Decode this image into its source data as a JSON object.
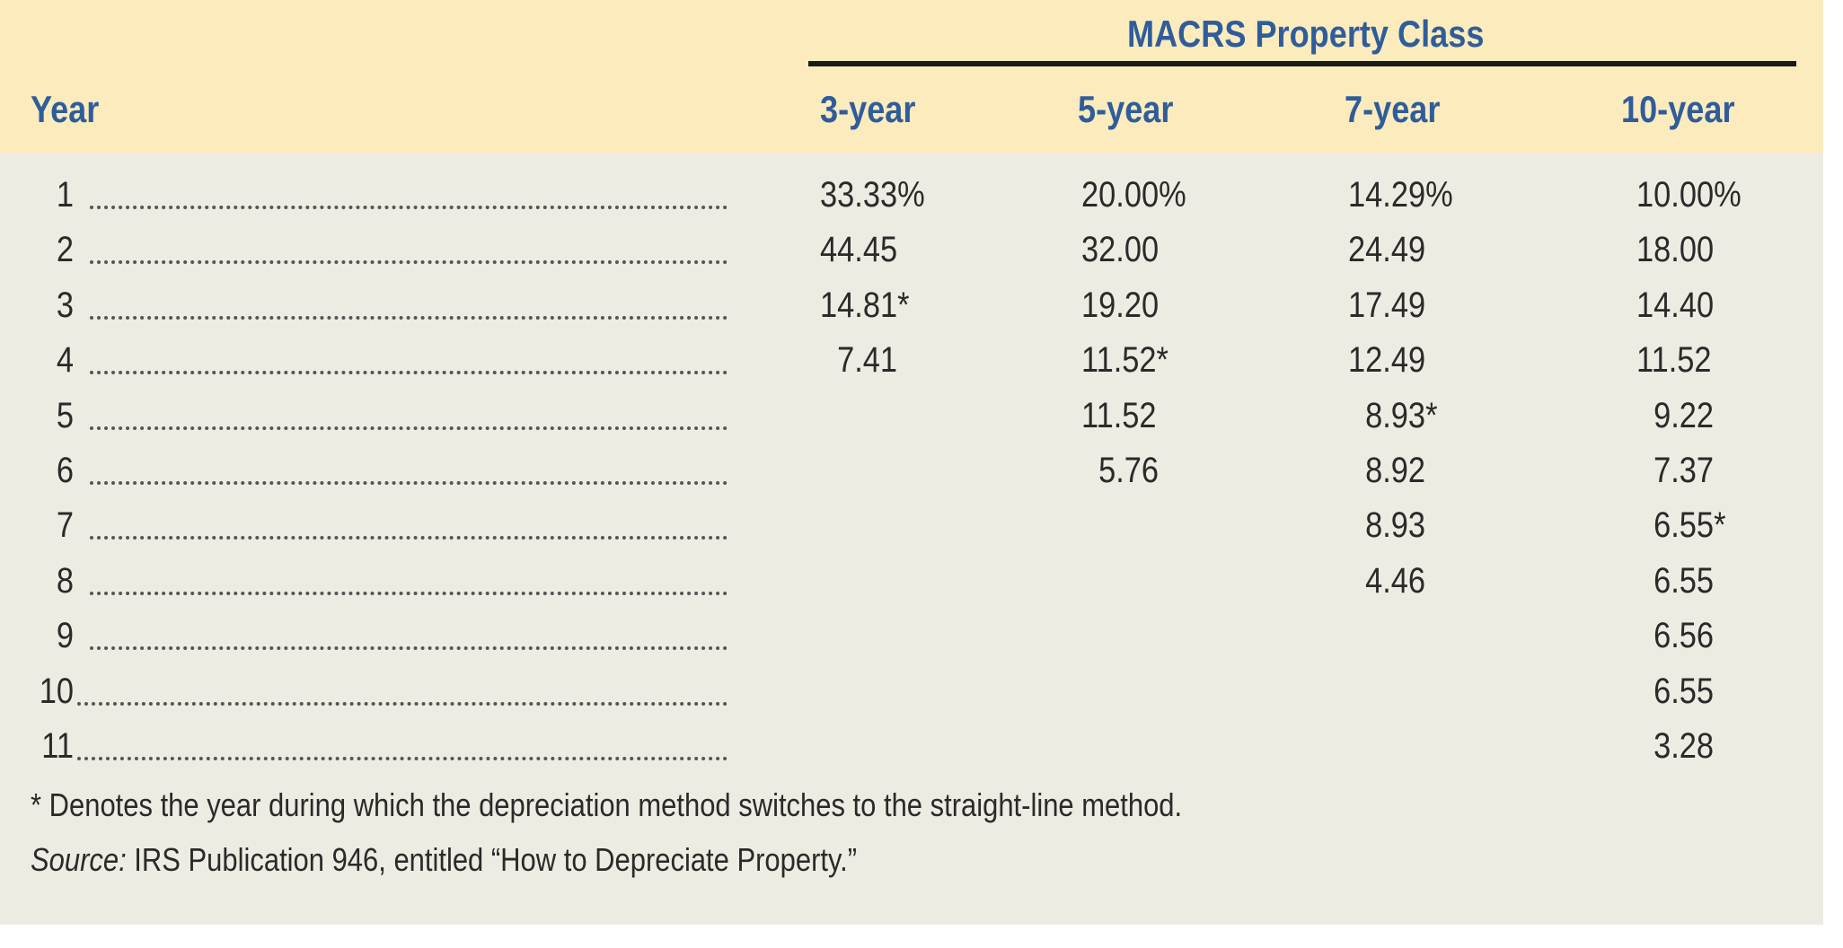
{
  "header": {
    "group_title": "MACRS Property Class",
    "year_label": "Year",
    "columns": [
      "3-year",
      "5-year",
      "7-year",
      "10-year"
    ]
  },
  "rows": [
    {
      "year": "1",
      "values": [
        "33.33%",
        "20.00%",
        "14.29%",
        "10.00%"
      ]
    },
    {
      "year": "2",
      "values": [
        "44.45",
        "32.00",
        "24.49",
        "18.00"
      ]
    },
    {
      "year": "3",
      "values": [
        "14.81*",
        "19.20",
        "17.49",
        "14.40"
      ]
    },
    {
      "year": "4",
      "values": [
        "  7.41",
        "11.52*",
        "12.49",
        "11.52"
      ]
    },
    {
      "year": "5",
      "values": [
        "",
        "11.52",
        "  8.93*",
        "  9.22"
      ]
    },
    {
      "year": "6",
      "values": [
        "",
        "  5.76",
        "  8.92",
        "  7.37"
      ]
    },
    {
      "year": "7",
      "values": [
        "",
        "",
        "  8.93",
        "  6.55*"
      ]
    },
    {
      "year": "8",
      "values": [
        "",
        "",
        "  4.46",
        "  6.55"
      ]
    },
    {
      "year": "9",
      "values": [
        "",
        "",
        "",
        "  6.56"
      ]
    },
    {
      "year": "10",
      "values": [
        "",
        "",
        "",
        "  6.55"
      ]
    },
    {
      "year": "11",
      "values": [
        "",
        "",
        "",
        "  3.28"
      ]
    }
  ],
  "footnote": "* Denotes the year during which the depreciation method switches to the straight-line method.",
  "source": {
    "label": "Source:",
    "text": " IRS Publication 946, entitled “How to Depreciate Property.”"
  },
  "colors": {
    "header_background": "#fcebbd",
    "body_background": "#eeebe2",
    "header_text": "#2f5d9b"
  }
}
